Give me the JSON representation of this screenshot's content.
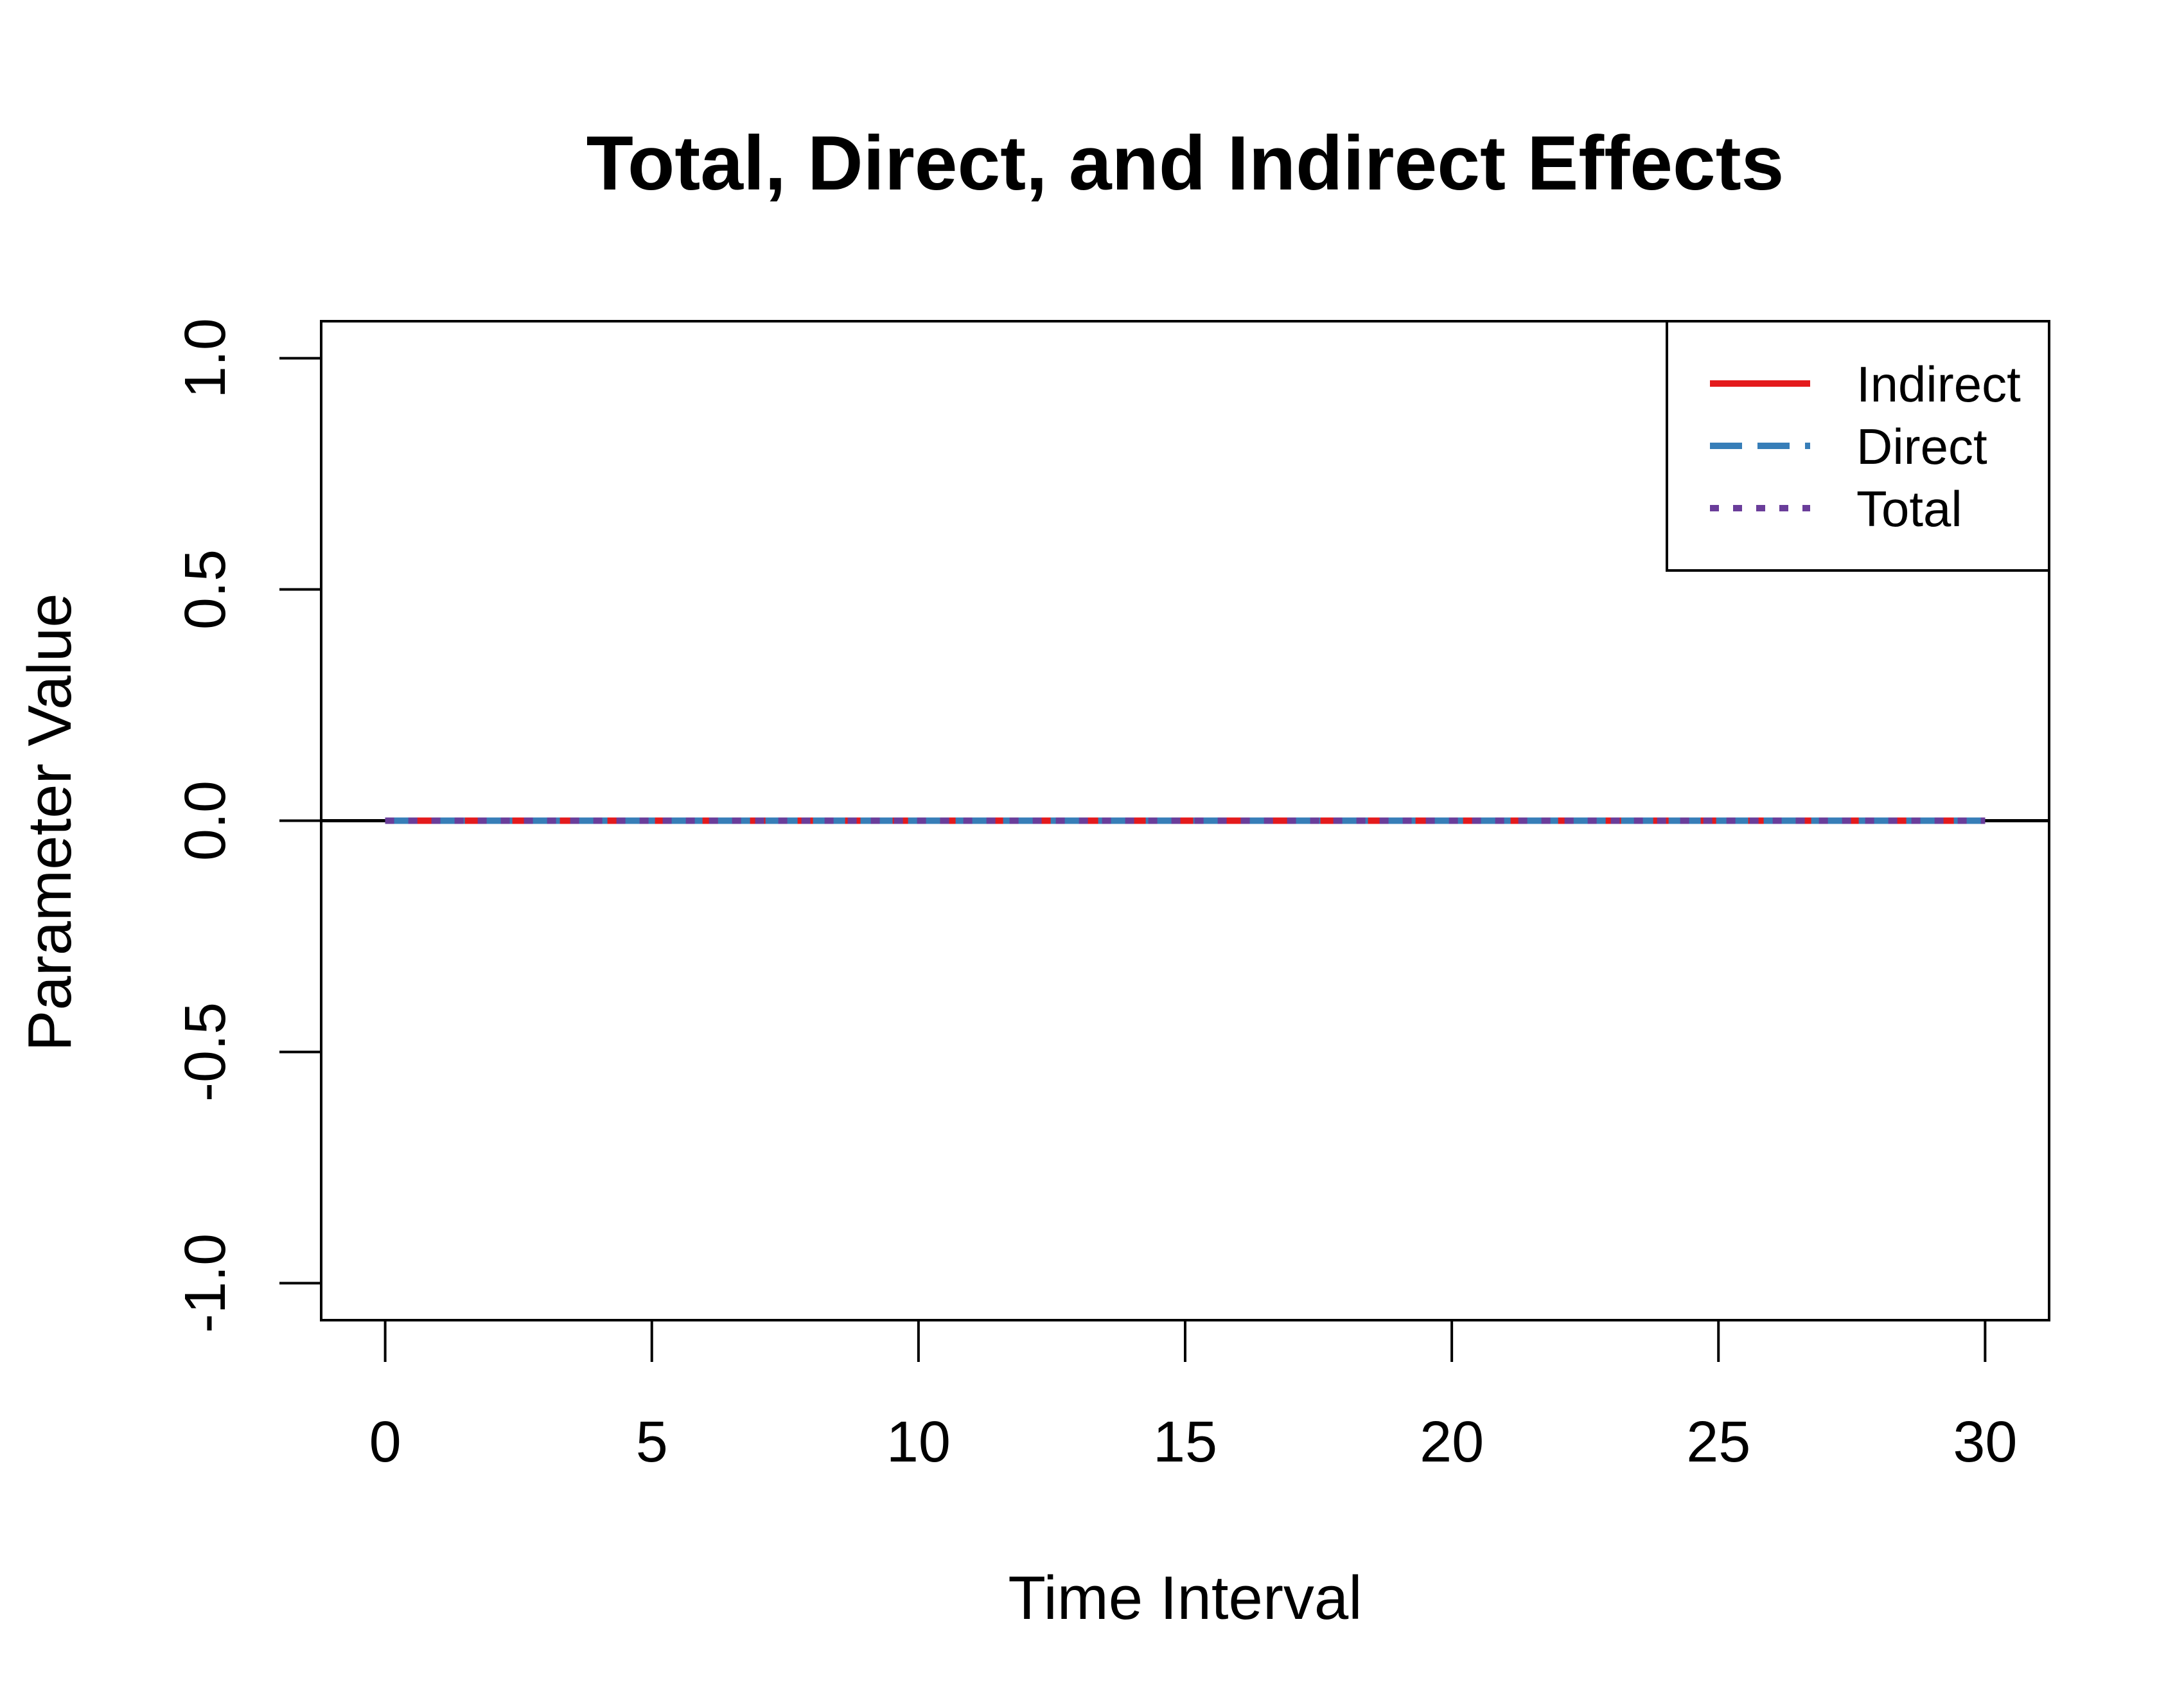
{
  "chart_data": {
    "type": "line",
    "title": "Total, Direct, and Indirect Effects",
    "xlabel": "Time Interval",
    "ylabel": "Parameter Value",
    "xlim": [
      -1.2,
      31.2
    ],
    "ylim": [
      -1.08,
      1.08
    ],
    "xticks": [
      0,
      5,
      10,
      15,
      20,
      25,
      30
    ],
    "xtick_labels": [
      "0",
      "5",
      "10",
      "15",
      "20",
      "25",
      "30"
    ],
    "yticks": [
      -1.0,
      -0.5,
      0.0,
      0.5,
      1.0
    ],
    "ytick_labels": [
      "-1.0",
      "-0.5",
      "0.0",
      "0.5",
      "1.0"
    ],
    "reference_line_y": 0,
    "grid": false,
    "legend_position": "top-right",
    "x": [
      0,
      30
    ],
    "series": [
      {
        "name": "Indirect",
        "values": [
          0,
          0
        ],
        "color": "#E41A1C",
        "dash": "solid"
      },
      {
        "name": "Direct",
        "values": [
          0,
          0
        ],
        "color": "#377EB8",
        "dash": "dashed"
      },
      {
        "name": "Total",
        "values": [
          0,
          0
        ],
        "color": "#6A3D9A",
        "dash": "dotted"
      }
    ]
  }
}
